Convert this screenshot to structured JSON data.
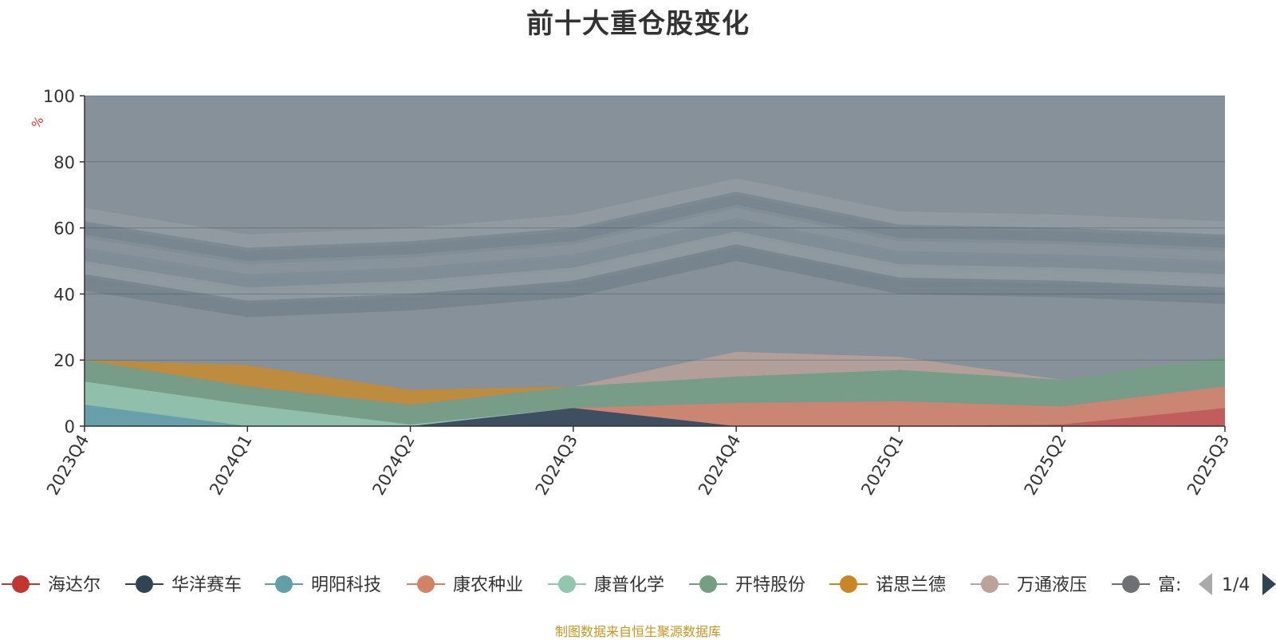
{
  "chart_data": {
    "type": "area",
    "stacked": "percent",
    "title": "前十大重仓股变化",
    "y_unit": "%",
    "ylim": [
      0,
      100
    ],
    "y_ticks": [
      "0",
      "20",
      "40",
      "60",
      "80",
      "100"
    ],
    "categories": [
      "2023Q4",
      "2024Q1",
      "2024Q2",
      "2024Q3",
      "2024Q4",
      "2025Q1",
      "2025Q2",
      "2025Q3"
    ],
    "grid": true,
    "legend_position": "bottom",
    "series": [
      {
        "name": "海达尔",
        "color": "#d05250",
        "values": [
          null,
          null,
          null,
          null,
          null,
          null,
          0.5,
          5.5
        ]
      },
      {
        "name": "华洋赛车",
        "color": "#2e4154",
        "values": [
          null,
          null,
          null,
          5.5,
          null,
          null,
          null,
          null
        ]
      },
      {
        "name": "明阳科技",
        "color": "#60a3ae",
        "values": [
          6.5,
          null,
          null,
          null,
          null,
          null,
          null,
          null
        ]
      },
      {
        "name": "康农种业",
        "color": "#d9826a",
        "values": [
          null,
          null,
          null,
          null,
          7,
          7.5,
          5.5,
          6.5
        ]
      },
      {
        "name": "康普化学",
        "color": "#93cab0",
        "values": [
          7,
          6.5,
          0.5,
          null,
          null,
          null,
          null,
          null
        ]
      },
      {
        "name": "开特股份",
        "color": "#749f83",
        "values": [
          6.5,
          5.5,
          6,
          6.5,
          8,
          9.5,
          8,
          9
        ]
      },
      {
        "name": "诺思兰德",
        "color": "#c98b2a",
        "values": [
          null,
          6.5,
          4.5,
          null,
          null,
          null,
          null,
          null
        ]
      },
      {
        "name": "万通液压",
        "color": "#bda29a",
        "values": [
          null,
          null,
          null,
          null,
          7.5,
          4,
          null,
          null
        ]
      },
      {
        "name": "富士达",
        "color": "#6e7074",
        "values": [
          null,
          null,
          null,
          null,
          null,
          null,
          null,
          null
        ]
      }
    ],
    "source_note": "制图数据来自恒生聚源数据库"
  },
  "legend": {
    "items": [
      {
        "label": "海达尔",
        "color": "#c23531"
      },
      {
        "label": "华洋赛车",
        "color": "#2f4554"
      },
      {
        "label": "明阳科技",
        "color": "#61a0a8"
      },
      {
        "label": "康农种业",
        "color": "#d48265"
      },
      {
        "label": "康普化学",
        "color": "#91c7ae"
      },
      {
        "label": "开特股份",
        "color": "#749f83"
      },
      {
        "label": "诺思兰德",
        "color": "#ca8622"
      },
      {
        "label": "万通液压",
        "color": "#bda29a"
      },
      {
        "label": "富:",
        "color": "#6e7074"
      }
    ],
    "page_indicator": "1/4"
  }
}
